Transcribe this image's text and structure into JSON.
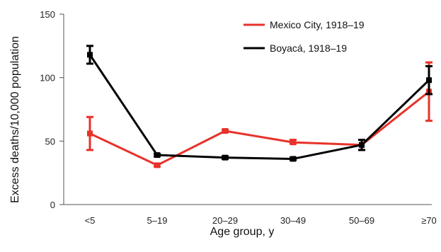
{
  "chart_data": {
    "type": "line",
    "title": "",
    "xlabel": "Age group, y",
    "ylabel": "Excess deaths/10,000 population",
    "categories": [
      "<5",
      "5–19",
      "20–29",
      "30–49",
      "50–69",
      "≥70"
    ],
    "ylim": [
      0,
      150
    ],
    "yticks": [
      0,
      50,
      100,
      150
    ],
    "legend_position": "top-right",
    "series": [
      {
        "name": "Mexico City, 1918–19",
        "color": "#e8322a",
        "values": [
          56,
          31,
          58,
          49,
          47,
          89
        ],
        "error_low": [
          43,
          30,
          57,
          48,
          43,
          66
        ],
        "error_high": [
          69,
          32,
          59,
          51,
          51,
          112
        ]
      },
      {
        "name": "Boyacá, 1918–19",
        "color": "#000000",
        "values": [
          118,
          39,
          37,
          36,
          47,
          98
        ],
        "error_low": [
          111,
          38,
          36,
          35,
          43,
          87
        ],
        "error_high": [
          125,
          40,
          38,
          37,
          51,
          109
        ]
      }
    ]
  }
}
